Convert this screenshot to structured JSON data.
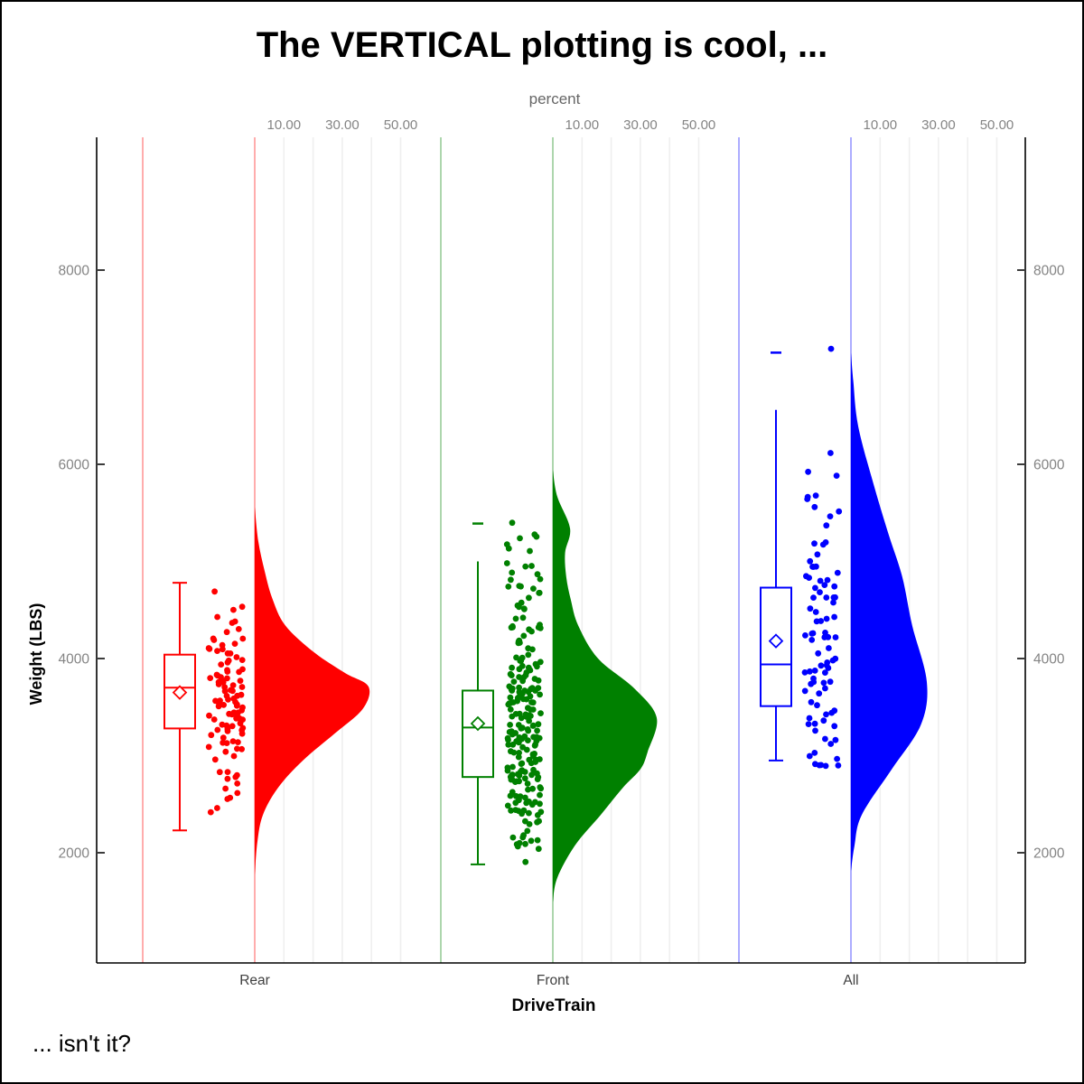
{
  "title": "The VERTICAL plotting is cool, ...",
  "footnote": "... isn't it?",
  "colors": {
    "axis_line": "#000000",
    "gridline": "#efefef",
    "tick_label": "#848484",
    "axis_title_gray": "#666666",
    "category_label": "#3f3f3f",
    "rear": "#ff0000",
    "front": "#008000",
    "all": "#0000ff"
  },
  "chart_data": {
    "type": "raincloud-vertical (half-violin + box + jitter)",
    "x_axis": {
      "label": "DriveTrain",
      "categories": [
        "Rear",
        "Front",
        "All"
      ]
    },
    "y_axis": {
      "label": "Weight (LBS)",
      "ticks": [
        2000,
        4000,
        6000,
        8000
      ],
      "range": [
        870,
        9370
      ],
      "sides": "both"
    },
    "top_axis": {
      "label": "percent",
      "tick_values": [
        10,
        30,
        50
      ],
      "tick_labels": [
        "10.00",
        "30.00",
        "50.00"
      ],
      "gridline_values": [
        10,
        20,
        30,
        40,
        50
      ],
      "repeated_per_group": true
    },
    "groups": [
      {
        "name": "Rear",
        "color": "#ff0000",
        "n_points": 105,
        "box": {
          "whisker_low": 2230,
          "q1": 3280,
          "median": 3700,
          "q3": 4040,
          "whisker_high": 4780,
          "mean": 3650,
          "cap_low": true,
          "cap_high": true,
          "far_values": []
        },
        "jitter_range": [
          2240,
          4800
        ],
        "extra_points": [],
        "seed": 7,
        "density_value_pct": [
          [
            5560,
            0
          ],
          [
            5210,
            1.2
          ],
          [
            4900,
            3.4
          ],
          [
            4620,
            6
          ],
          [
            4340,
            10.5
          ],
          [
            4060,
            20.5
          ],
          [
            3850,
            31
          ],
          [
            3710,
            39
          ],
          [
            3480,
            37
          ],
          [
            3230,
            27.5
          ],
          [
            2950,
            16.5
          ],
          [
            2670,
            8
          ],
          [
            2390,
            2.8
          ],
          [
            2110,
            0.9
          ],
          [
            1770,
            0
          ]
        ]
      },
      {
        "name": "Front",
        "color": "#008000",
        "n_points": 220,
        "box": {
          "whisker_low": 1880,
          "q1": 2780,
          "median": 3290,
          "q3": 3670,
          "whisker_high": 5000,
          "mean": 3330,
          "cap_low": true,
          "cap_high": false,
          "far_values": [
            5390
          ]
        },
        "jitter_range": [
          1880,
          5400
        ],
        "extra_points": [],
        "seed": 13,
        "density_value_pct": [
          [
            5940,
            0
          ],
          [
            5670,
            1.5
          ],
          [
            5340,
            5.9
          ],
          [
            5090,
            4.2
          ],
          [
            4840,
            4.6
          ],
          [
            4600,
            6.2
          ],
          [
            4340,
            8.7
          ],
          [
            4000,
            15.5
          ],
          [
            3690,
            28
          ],
          [
            3390,
            35.6
          ],
          [
            3040,
            32.5
          ],
          [
            2860,
            30
          ],
          [
            2670,
            24
          ],
          [
            2390,
            16.4
          ],
          [
            2080,
            7.7
          ],
          [
            1740,
            1.5
          ],
          [
            1490,
            0
          ]
        ]
      },
      {
        "name": "All",
        "color": "#0000ff",
        "n_points": 88,
        "box": {
          "whisker_low": 2950,
          "q1": 3510,
          "median": 3940,
          "q3": 4730,
          "whisker_high": 6560,
          "mean": 4180,
          "cap_low": true,
          "cap_high": false,
          "far_values": [
            7150
          ]
        },
        "jitter_range": [
          2860,
          6450
        ],
        "extra_points": [
          7190
        ],
        "seed": 29,
        "density_value_pct": [
          [
            7150,
            0
          ],
          [
            6860,
            0.8
          ],
          [
            6390,
            2.5
          ],
          [
            5770,
            8
          ],
          [
            5270,
            13
          ],
          [
            4840,
            17.6
          ],
          [
            4340,
            21
          ],
          [
            3760,
            26
          ],
          [
            3320,
            24
          ],
          [
            2860,
            14
          ],
          [
            2390,
            3.7
          ],
          [
            2070,
            1.2
          ],
          [
            1810,
            0
          ]
        ]
      }
    ],
    "legend": false,
    "grid": "vertical-percent-gridlines-per-group"
  }
}
